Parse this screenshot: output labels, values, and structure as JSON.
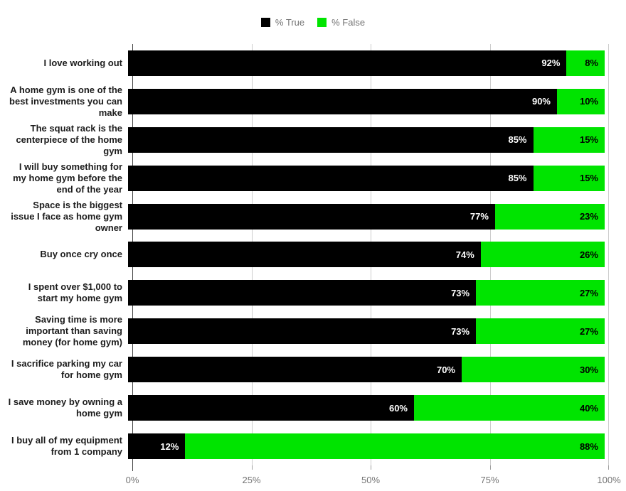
{
  "chart_data": {
    "type": "bar",
    "orientation": "horizontal",
    "stacked": true,
    "title": "",
    "xlabel": "",
    "ylabel": "",
    "xlim": [
      0,
      100
    ],
    "grid": true,
    "legend_position": "top",
    "xticks": [
      "0%",
      "25%",
      "50%",
      "75%",
      "100%"
    ],
    "xtick_values": [
      0,
      25,
      50,
      75,
      100
    ],
    "categories": [
      "I love working out",
      "A home gym is one of the best investments you can make",
      "The squat rack is the centerpiece of the home gym",
      "I will buy something for my home gym before the end of the year",
      "Space is the biggest issue I face as home gym owner",
      "Buy once cry once",
      "I spent over $1,000 to start my home gym",
      "Saving time is more important than saving money (for home gym)",
      "I sacrifice parking my car for home gym",
      "I save money by owning a home gym",
      "I buy all of my equipment from 1 company"
    ],
    "series": [
      {
        "name": "% True",
        "color": "#000000",
        "label_color": "#ffffff",
        "values": [
          92,
          90,
          85,
          85,
          77,
          74,
          73,
          73,
          70,
          60,
          12
        ],
        "labels": [
          "92%",
          "90%",
          "85%",
          "85%",
          "77%",
          "74%",
          "73%",
          "73%",
          "70%",
          "60%",
          "12%"
        ]
      },
      {
        "name": "% False",
        "color": "#00e400",
        "label_color": "#000000",
        "values": [
          8,
          10,
          15,
          15,
          23,
          26,
          27,
          27,
          30,
          40,
          88
        ],
        "labels": [
          "8%",
          "10%",
          "15%",
          "15%",
          "23%",
          "26%",
          "27%",
          "27%",
          "30%",
          "40%",
          "88%"
        ]
      }
    ],
    "colors": {
      "axis_line": "#424242",
      "gridline": "#cccccc",
      "tick_label": "#757575",
      "category_label": "#1c1c1c"
    }
  }
}
